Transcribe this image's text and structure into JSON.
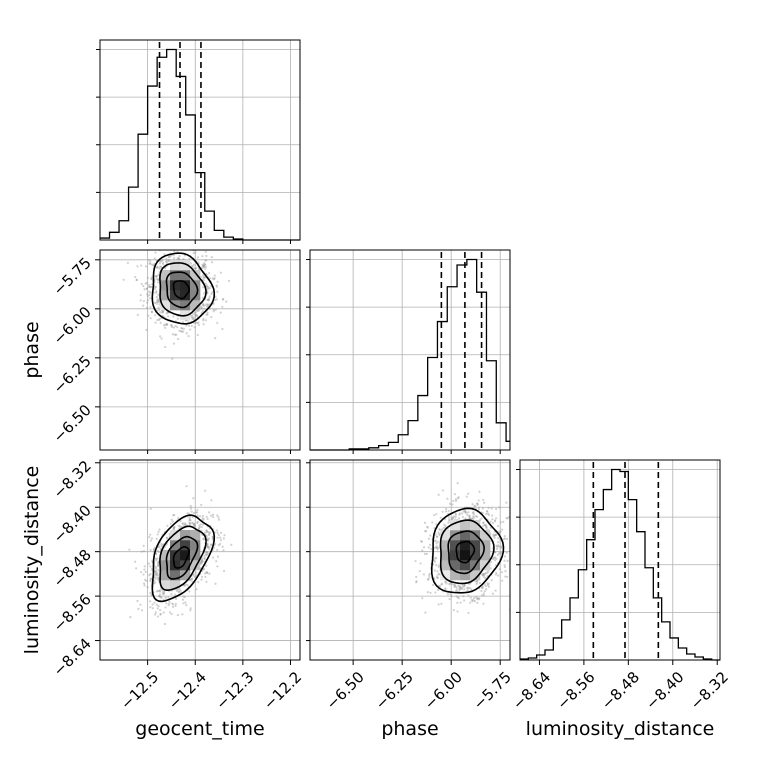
{
  "chart_data": {
    "type": "corner",
    "parameters": [
      "geocent_time",
      "phase",
      "luminosity_distance"
    ],
    "axes": {
      "geocent_time": {
        "label": "geocent_time",
        "range": [
          -12.6,
          -12.18
        ],
        "ticks": [
          -12.5,
          -12.4,
          -12.3,
          -12.2
        ],
        "tick_labels": [
          "−12.5",
          "−12.4",
          "−12.3",
          "−12.2"
        ]
      },
      "phase": {
        "label": "phase",
        "range": [
          -6.72,
          -5.7
        ],
        "ticks": [
          -6.5,
          -6.25,
          -6.0,
          -5.75
        ],
        "tick_labels": [
          "−6.50",
          "−6.25",
          "−6.00",
          "−5.75"
        ]
      },
      "luminosity_distance": {
        "label": "luminosity_distance",
        "range": [
          -8.675,
          -8.315
        ],
        "ticks": [
          -8.64,
          -8.56,
          -8.48,
          -8.4,
          -8.32
        ],
        "tick_labels": [
          "−8.64",
          "−8.56",
          "−8.48",
          "−8.40",
          "−8.32"
        ]
      }
    },
    "histograms": {
      "geocent_time": {
        "bin_edges": [
          -12.6,
          -12.58,
          -12.56,
          -12.54,
          -12.52,
          -12.5,
          -12.48,
          -12.46,
          -12.44,
          -12.42,
          -12.4,
          -12.38,
          -12.36,
          -12.34,
          -12.32,
          -12.3,
          -12.28,
          -12.26,
          -12.24,
          -12.22,
          -12.2,
          -12.18
        ],
        "counts": [
          2,
          8,
          20,
          55,
          110,
          160,
          190,
          198,
          170,
          130,
          70,
          30,
          10,
          3,
          1,
          0,
          0,
          0,
          0,
          0,
          0
        ],
        "quantiles": [
          -12.475,
          -12.432,
          -12.388
        ]
      },
      "phase": {
        "bin_edges": [
          -6.72,
          -6.67,
          -6.62,
          -6.57,
          -6.52,
          -6.47,
          -6.42,
          -6.37,
          -6.32,
          -6.27,
          -6.22,
          -6.17,
          -6.12,
          -6.07,
          -6.02,
          -5.97,
          -5.92,
          -5.87,
          -5.82,
          -5.77,
          -5.72,
          -5.7
        ],
        "counts": [
          0,
          0,
          0,
          0,
          1,
          1,
          2,
          4,
          7,
          14,
          27,
          50,
          85,
          118,
          150,
          170,
          175,
          145,
          82,
          25,
          8
        ],
        "quantiles": [
          -6.05,
          -5.93,
          -5.845
        ]
      },
      "luminosity_distance": {
        "bin_edges": [
          -8.675,
          -8.66,
          -8.645,
          -8.63,
          -8.615,
          -8.6,
          -8.585,
          -8.57,
          -8.555,
          -8.54,
          -8.525,
          -8.51,
          -8.495,
          -8.48,
          -8.465,
          -8.45,
          -8.435,
          -8.42,
          -8.405,
          -8.39,
          -8.375,
          -8.36,
          -8.345,
          -8.33,
          -8.315
        ],
        "counts": [
          1,
          2,
          5,
          10,
          22,
          40,
          62,
          90,
          120,
          150,
          170,
          190,
          188,
          160,
          128,
          92,
          62,
          38,
          22,
          12,
          6,
          3,
          1,
          0
        ],
        "quantiles": [
          -8.543,
          -8.486,
          -8.426
        ]
      }
    },
    "contour_levels": [
      "0.5σ",
      "1σ",
      "1.5σ",
      "2σ"
    ],
    "pairs": [
      {
        "x": "geocent_time",
        "y": "phase",
        "mean": [
          -12.43,
          -5.9
        ],
        "std": [
          0.032,
          0.09
        ],
        "rho": -0.1
      },
      {
        "x": "geocent_time",
        "y": "luminosity_distance",
        "mean": [
          -12.43,
          -8.49
        ],
        "std": [
          0.032,
          0.038
        ],
        "rho": 0.45
      },
      {
        "x": "phase",
        "y": "luminosity_distance",
        "mean": [
          -5.93,
          -8.48
        ],
        "std": [
          0.09,
          0.038
        ],
        "rho": 0.1
      }
    ],
    "grid": true
  }
}
